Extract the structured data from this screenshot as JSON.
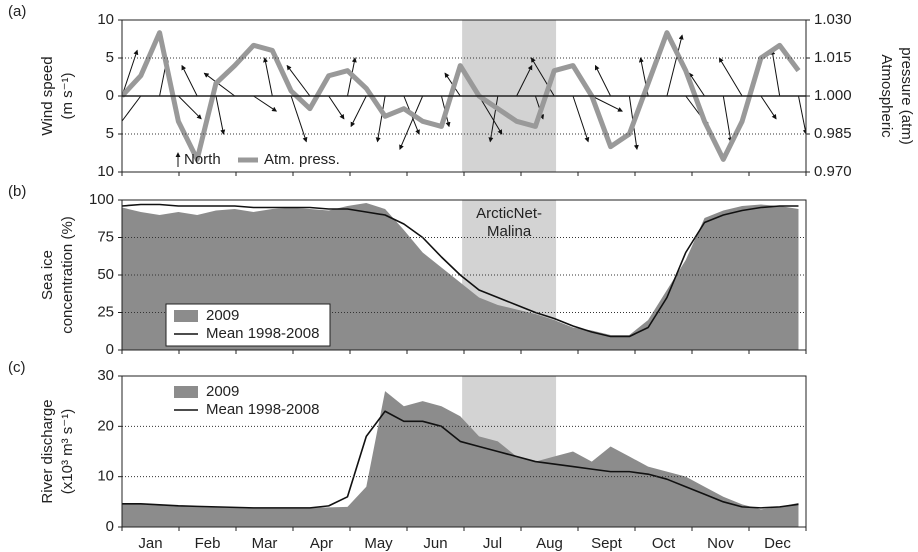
{
  "chart_data": [
    {
      "type": "line",
      "panel_label": "(a)",
      "ylabel": [
        "Wind speed",
        "(m s⁻¹)"
      ],
      "y2label": [
        "Atmospheric",
        "pressure (atm)"
      ],
      "categories": [
        "Jan",
        "Feb",
        "Mar",
        "Apr",
        "May",
        "Jun",
        "Jul",
        "Aug",
        "Sept",
        "Oct",
        "Nov",
        "Dec"
      ],
      "xlim": [
        1,
        365
      ],
      "highlight": [
        182,
        232
      ],
      "grid": true,
      "ylim": [
        -10,
        10
      ],
      "yticks": [
        {
          "value": -10,
          "label": "10"
        },
        {
          "value": -5,
          "label": "5"
        },
        0,
        5,
        10
      ],
      "y2lim": [
        0.97,
        1.03
      ],
      "y2ticks": [
        {
          "value": 0.97,
          "label": "0.970"
        },
        {
          "value": 0.985,
          "label": "0.985"
        },
        {
          "value": 1,
          "label": "1.000"
        },
        {
          "value": 1.015,
          "label": "1.015"
        },
        {
          "value": 1.03,
          "label": "1.030"
        }
      ],
      "x": [
        1,
        11,
        21,
        31,
        41,
        51,
        61,
        71,
        81,
        91,
        101,
        111,
        121,
        131,
        141,
        151,
        161,
        171,
        181,
        191,
        201,
        211,
        221,
        231,
        241,
        251,
        261,
        271,
        281,
        291,
        301,
        311,
        321,
        331,
        341,
        351,
        361
      ],
      "series": [
        {
          "name": "North",
          "type": "arrow",
          "color": "#111111",
          "values": [
            6,
            -4,
            5,
            -3,
            4,
            -5,
            3,
            -2,
            5,
            -6,
            4,
            -3,
            5,
            -4,
            -6,
            -5,
            -7,
            -4,
            3,
            -5,
            -6,
            4,
            -3,
            5,
            -6,
            -2,
            4,
            -7,
            5,
            8,
            -4,
            3,
            -6,
            5,
            -3,
            6,
            -5
          ],
          "u": [
            2,
            -3,
            1,
            3,
            -2,
            1,
            -4,
            3,
            -1,
            2,
            -3,
            2,
            1,
            -2,
            -1,
            2,
            -3,
            1,
            -2,
            3,
            -1,
            2,
            1,
            -3,
            2,
            4,
            -2,
            1,
            -1,
            2,
            3,
            -2,
            1,
            -3,
            2,
            -1,
            1
          ]
        },
        {
          "name": "Atm. press.",
          "type": "line",
          "axis": "y2",
          "color": "#999999",
          "values": [
            1.0,
            1.008,
            1.025,
            0.99,
            0.975,
            1.005,
            1.012,
            1.02,
            1.018,
            1.002,
            0.995,
            1.008,
            1.01,
            1.003,
            0.992,
            0.995,
            0.99,
            0.988,
            1.012,
            1.0,
            0.995,
            0.99,
            0.988,
            1.01,
            1.012,
            1.0,
            0.98,
            0.985,
            1.005,
            1.025,
            1.01,
            0.99,
            0.975,
            0.99,
            1.015,
            1.02,
            1.01
          ]
        }
      ]
    },
    {
      "type": "area",
      "panel_label": "(b)",
      "ylabel": [
        "Sea ice",
        "concentration (%)"
      ],
      "annotation": [
        "ArcticNet-",
        "Malina"
      ],
      "xlim": [
        1,
        365
      ],
      "highlight": [
        182,
        232
      ],
      "grid": true,
      "ylim": [
        0,
        100
      ],
      "yticks": [
        0,
        25,
        50,
        75,
        100
      ],
      "x": [
        1,
        11,
        21,
        31,
        41,
        51,
        61,
        71,
        81,
        91,
        101,
        111,
        121,
        131,
        141,
        151,
        161,
        171,
        181,
        191,
        201,
        211,
        221,
        231,
        241,
        251,
        261,
        271,
        281,
        291,
        301,
        311,
        321,
        331,
        341,
        351,
        361
      ],
      "series": [
        {
          "name": "2009",
          "type": "area",
          "color": "#8c8c8c",
          "values": [
            95,
            92,
            90,
            92,
            90,
            93,
            94,
            92,
            94,
            95,
            94,
            93,
            96,
            98,
            94,
            80,
            65,
            55,
            45,
            35,
            30,
            27,
            24,
            20,
            15,
            13,
            10,
            10,
            20,
            40,
            60,
            88,
            93,
            96,
            97,
            96,
            94
          ]
        },
        {
          "name": "Mean 1998-2008",
          "type": "line",
          "color": "#111111",
          "values": [
            96,
            97,
            97,
            96,
            96,
            96,
            96,
            95,
            95,
            95,
            95,
            94,
            94,
            92,
            90,
            84,
            75,
            62,
            50,
            40,
            35,
            30,
            25,
            21,
            16,
            12,
            9,
            9,
            15,
            35,
            65,
            85,
            90,
            93,
            95,
            96,
            96
          ]
        }
      ]
    },
    {
      "type": "area",
      "panel_label": "(c)",
      "ylabel": [
        "River discharge",
        "(x10³ m³ s⁻¹)"
      ],
      "categories": [
        "Jan",
        "Feb",
        "Mar",
        "Apr",
        "May",
        "Jun",
        "Jul",
        "Aug",
        "Sept",
        "Oct",
        "Nov",
        "Dec"
      ],
      "xlim": [
        1,
        365
      ],
      "highlight": [
        182,
        232
      ],
      "grid": true,
      "ylim": [
        0,
        30
      ],
      "yticks": [
        0,
        10,
        20,
        30
      ],
      "x": [
        1,
        11,
        21,
        31,
        41,
        51,
        61,
        71,
        81,
        91,
        101,
        111,
        121,
        131,
        141,
        151,
        161,
        171,
        181,
        191,
        201,
        211,
        221,
        231,
        241,
        251,
        261,
        271,
        281,
        291,
        301,
        311,
        321,
        331,
        341,
        351,
        361
      ],
      "series": [
        {
          "name": "2009",
          "type": "area",
          "color": "#8c8c8c",
          "values": [
            4.5,
            4.5,
            4.3,
            4.1,
            4,
            3.9,
            3.8,
            3.7,
            3.7,
            3.8,
            3.8,
            3.9,
            4,
            8,
            27,
            24,
            25,
            24,
            22,
            18,
            17,
            14,
            13,
            14,
            15,
            13,
            16,
            14,
            12,
            11,
            10,
            8,
            6,
            4.5,
            3.5,
            4,
            4.8
          ]
        },
        {
          "name": "Mean 1998-2008",
          "type": "line",
          "color": "#111111",
          "values": [
            4.6,
            4.6,
            4.4,
            4.2,
            4.1,
            4,
            3.9,
            3.8,
            3.8,
            3.8,
            3.8,
            4.2,
            6,
            18,
            23,
            21,
            21,
            20,
            17,
            16,
            15,
            14,
            13,
            12.5,
            12,
            11.5,
            11,
            11,
            10.5,
            9.5,
            8,
            6.5,
            5,
            4,
            3.8,
            4,
            4.5
          ]
        }
      ]
    }
  ]
}
